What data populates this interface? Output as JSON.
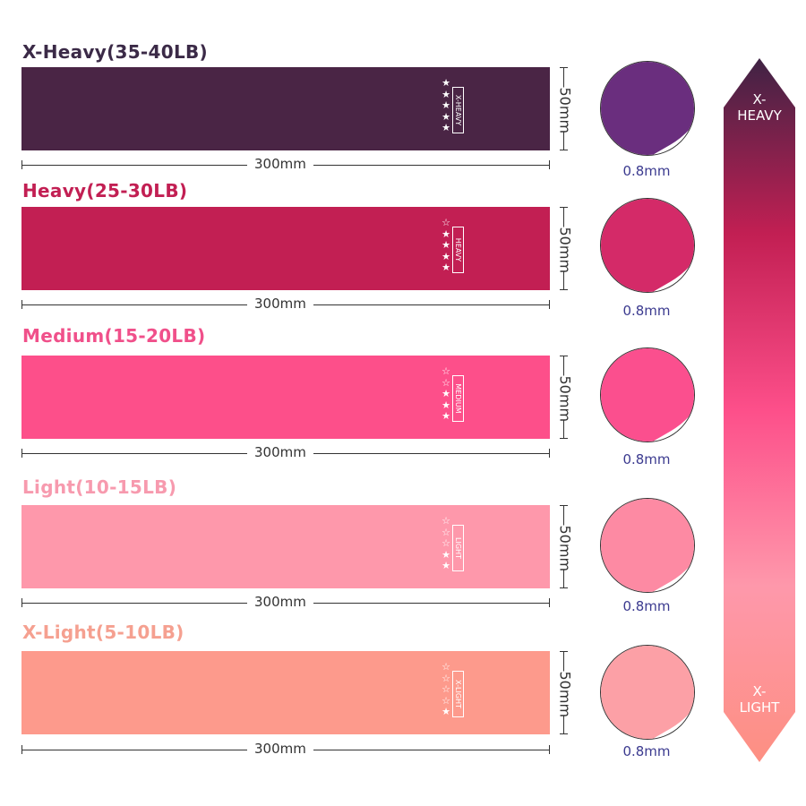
{
  "bands": [
    {
      "title": "X-Heavy(35-40LB)",
      "tag": "X-HEAVY",
      "stars_filled": 5,
      "stars_total": 5,
      "length": "300mm",
      "width": "50mm",
      "thickness": "0.8mm",
      "color": "#4a2545",
      "title_color": "#3b2a47",
      "fold_color": "#6a2e7e"
    },
    {
      "title": "Heavy(25-30LB)",
      "tag": "HEAVY",
      "stars_filled": 4,
      "stars_total": 5,
      "length": "300mm",
      "width": "50mm",
      "thickness": "0.8mm",
      "color": "#c21f53",
      "title_color": "#c21f53",
      "fold_color": "#d42a68"
    },
    {
      "title": "Medium(15-20LB)",
      "tag": "MEDIUM",
      "stars_filled": 3,
      "stars_total": 5,
      "length": "300mm",
      "width": "50mm",
      "thickness": "0.8mm",
      "color": "#fd4f8a",
      "title_color": "#f0508a",
      "fold_color": "#fb4f8e"
    },
    {
      "title": "Light(10-15LB)",
      "tag": "LIGHT",
      "stars_filled": 2,
      "stars_total": 5,
      "length": "300mm",
      "width": "50mm",
      "thickness": "0.8mm",
      "color": "#fe98ab",
      "title_color": "#f79aae",
      "fold_color": "#fd8aa3"
    },
    {
      "title": "X-Light(5-10LB)",
      "tag": "X-LIGHT",
      "stars_filled": 1,
      "stars_total": 5,
      "length": "300mm",
      "width": "50mm",
      "thickness": "0.8mm",
      "color": "#fd9a8c",
      "title_color": "#f5a090",
      "fold_color": "#fca0a6"
    }
  ],
  "scale": {
    "top_label": "X-\nHEAVY",
    "bottom_label": "X-\nLIGHT",
    "gradient": [
      "#3f2344",
      "#c21f53",
      "#fd4f8a",
      "#fe98ab",
      "#fd8f82"
    ]
  }
}
